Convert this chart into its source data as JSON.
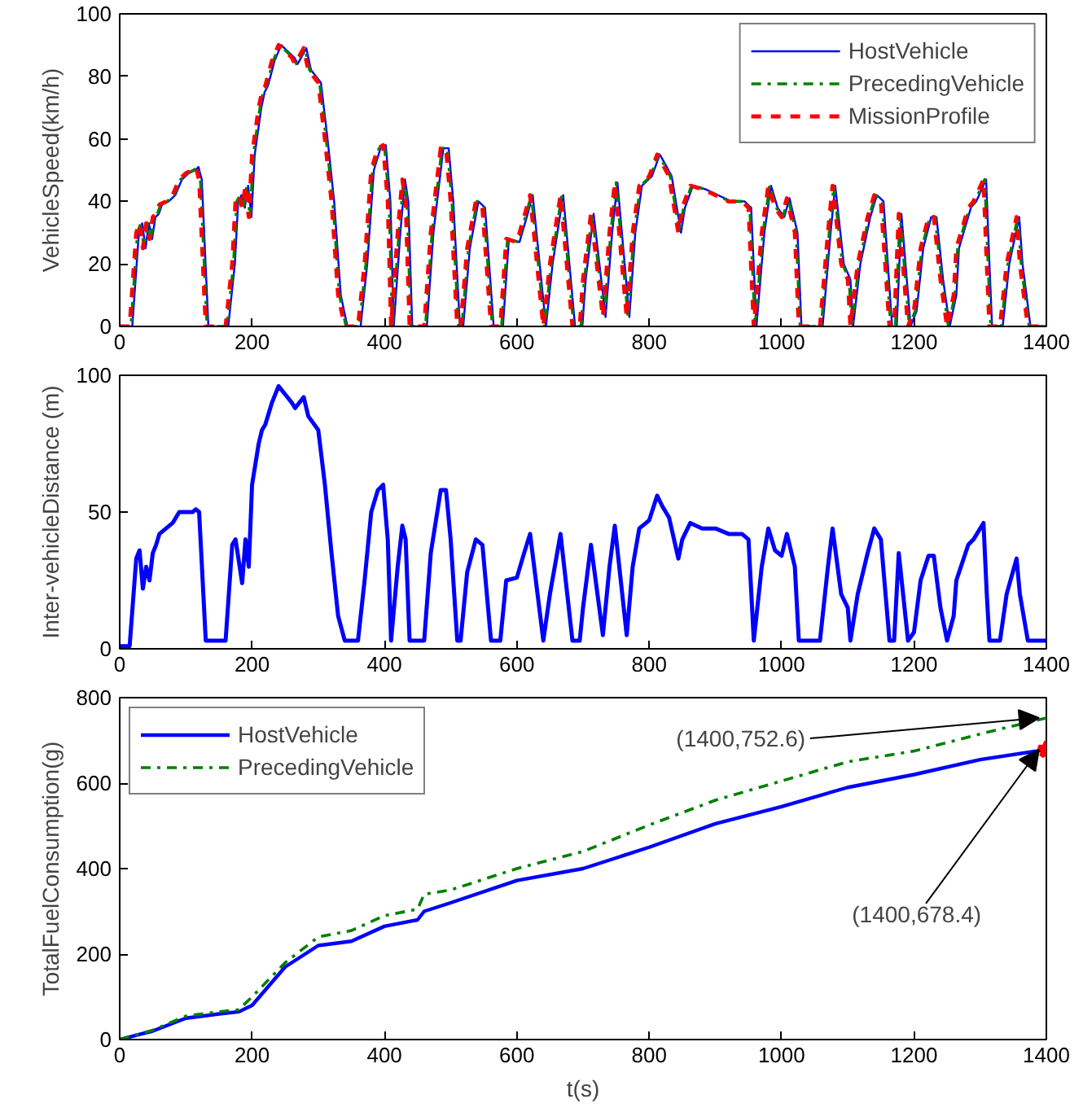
{
  "chart_data": [
    {
      "type": "line",
      "ylabel": "VehicleSpeed(km/h)",
      "xlim": [
        0,
        1400
      ],
      "ylim": [
        0,
        100
      ],
      "xticks": [
        0,
        200,
        400,
        600,
        800,
        1000,
        1200,
        1400
      ],
      "yticks": [
        0,
        20,
        40,
        60,
        80,
        100
      ],
      "grid": false,
      "legend": "top right",
      "x": [
        0,
        15,
        25,
        30,
        35,
        40,
        45,
        50,
        55,
        60,
        70,
        80,
        90,
        100,
        110,
        115,
        120,
        130,
        160,
        170,
        175,
        180,
        185,
        190,
        195,
        200,
        210,
        215,
        220,
        230,
        240,
        250,
        260,
        265,
        278,
        285,
        300,
        310,
        320,
        330,
        340,
        360,
        370,
        380,
        390,
        398,
        405,
        410,
        420,
        427,
        432,
        438,
        460,
        470,
        485,
        493,
        500,
        510,
        515,
        525,
        538,
        548,
        561,
        575,
        584,
        600,
        611,
        620,
        640,
        650,
        666,
        684,
        695,
        700,
        712,
        730,
        740,
        748,
        766,
        775,
        785,
        800,
        812,
        820,
        830,
        844,
        850,
        862,
        880,
        900,
        920,
        940,
        950,
        958,
        970,
        980,
        990,
        1000,
        1008,
        1020,
        1026,
        1058,
        1070,
        1077,
        1090,
        1100,
        1104,
        1115,
        1130,
        1140,
        1150,
        1163,
        1170,
        1177,
        1191,
        1200,
        1210,
        1222,
        1230,
        1240,
        1250,
        1260,
        1264,
        1282,
        1290,
        1305,
        1310,
        1314,
        1330,
        1340,
        1355,
        1360,
        1372,
        1400
      ],
      "series": [
        {
          "name": "HostVehicle",
          "color": "#0000ff",
          "line_style": "solid",
          "x": [
            0,
            19,
            29,
            34,
            39,
            44,
            49,
            54,
            59,
            64,
            74,
            84,
            94,
            104,
            114,
            119,
            124,
            134,
            164,
            174,
            179,
            184,
            189,
            194,
            199,
            204,
            214,
            219,
            224,
            234,
            244,
            254,
            264,
            269,
            282,
            289,
            304,
            314,
            324,
            334,
            344,
            364,
            374,
            384,
            394,
            402,
            409,
            414,
            424,
            431,
            436,
            442,
            464,
            474,
            489,
            497,
            504,
            514,
            519,
            529,
            542,
            552,
            565,
            579,
            588,
            604,
            615,
            624,
            644,
            654,
            670,
            688,
            699,
            704,
            716,
            734,
            744,
            752,
            770,
            779,
            789,
            804,
            816,
            824,
            834,
            848,
            854,
            866,
            884,
            904,
            924,
            944,
            954,
            962,
            974,
            984,
            994,
            1004,
            1012,
            1024,
            1030,
            1062,
            1074,
            1081,
            1094,
            1104,
            1108,
            1119,
            1134,
            1144,
            1154,
            1167,
            1174,
            1181,
            1195,
            1204,
            1214,
            1226,
            1234,
            1244,
            1254,
            1264,
            1268,
            1286,
            1294,
            1309,
            1314,
            1318,
            1334,
            1344,
            1359,
            1364,
            1376,
            1400
          ],
          "values": [
            0,
            0,
            30,
            33,
            25,
            33,
            28,
            35,
            36,
            39,
            40,
            42,
            47,
            49,
            50,
            51,
            47,
            0,
            0,
            20,
            40,
            42,
            38,
            45,
            35,
            55,
            70,
            75,
            77,
            85,
            90,
            88,
            86,
            84,
            89,
            82,
            78,
            60,
            40,
            10,
            0,
            0,
            20,
            50,
            57,
            58,
            40,
            0,
            30,
            47,
            40,
            0,
            0,
            30,
            57,
            57,
            40,
            0,
            0,
            25,
            40,
            38,
            0,
            0,
            28,
            27,
            35,
            42,
            0,
            20,
            42,
            0,
            0,
            15,
            36,
            3,
            30,
            46,
            3,
            30,
            45,
            48,
            55,
            52,
            48,
            30,
            38,
            45,
            44,
            42,
            40,
            40,
            38,
            0,
            30,
            45,
            38,
            35,
            41,
            30,
            0,
            0,
            30,
            45,
            20,
            15,
            0,
            20,
            35,
            42,
            40,
            0,
            0,
            36,
            0,
            5,
            25,
            35,
            35,
            15,
            0,
            10,
            25,
            38,
            40,
            47,
            20,
            0,
            0,
            20,
            35,
            20,
            0,
            0
          ]
        },
        {
          "name": "PrecedingVehicle",
          "color": "#008000",
          "line_style": "dashdot",
          "x": [
            0,
            17,
            27,
            32,
            37,
            42,
            47,
            52,
            57,
            62,
            72,
            82,
            92,
            102,
            112,
            117,
            122,
            132,
            162,
            172,
            177,
            182,
            187,
            192,
            197,
            202,
            212,
            217,
            222,
            232,
            242,
            252,
            262,
            267,
            280,
            287,
            302,
            312,
            322,
            332,
            342,
            362,
            372,
            382,
            392,
            400,
            407,
            412,
            422,
            429,
            434,
            440,
            462,
            472,
            487,
            495,
            502,
            512,
            517,
            527,
            540,
            550,
            563,
            577,
            586,
            602,
            613,
            622,
            642,
            652,
            668,
            686,
            697,
            702,
            714,
            732,
            742,
            750,
            768,
            777,
            787,
            802,
            814,
            822,
            832,
            846,
            852,
            864,
            882,
            902,
            922,
            942,
            952,
            960,
            972,
            982,
            992,
            1002,
            1010,
            1022,
            1028,
            1060,
            1072,
            1079,
            1092,
            1102,
            1106,
            1117,
            1132,
            1142,
            1152,
            1165,
            1172,
            1179,
            1193,
            1202,
            1212,
            1224,
            1232,
            1242,
            1252,
            1262,
            1266,
            1284,
            1292,
            1307,
            1312,
            1316,
            1332,
            1342,
            1357,
            1362,
            1374,
            1400
          ],
          "values": [
            0,
            0,
            30,
            33,
            25,
            33,
            28,
            35,
            36,
            39,
            40,
            42,
            47,
            49,
            50,
            51,
            47,
            0,
            0,
            20,
            40,
            42,
            38,
            45,
            35,
            55,
            70,
            75,
            77,
            85,
            90,
            88,
            86,
            84,
            89,
            82,
            78,
            60,
            40,
            10,
            0,
            0,
            20,
            50,
            57,
            58,
            40,
            0,
            30,
            47,
            40,
            0,
            0,
            30,
            57,
            57,
            40,
            0,
            0,
            25,
            40,
            38,
            0,
            0,
            28,
            27,
            35,
            42,
            0,
            20,
            42,
            0,
            0,
            15,
            36,
            3,
            30,
            46,
            3,
            30,
            45,
            48,
            55,
            52,
            48,
            30,
            38,
            45,
            44,
            42,
            40,
            40,
            38,
            0,
            30,
            45,
            38,
            35,
            41,
            30,
            0,
            0,
            30,
            45,
            20,
            15,
            0,
            20,
            35,
            42,
            40,
            0,
            0,
            36,
            0,
            5,
            25,
            35,
            35,
            15,
            0,
            10,
            25,
            38,
            40,
            47,
            20,
            0,
            0,
            20,
            35,
            20,
            0,
            0
          ]
        },
        {
          "name": "MissionProfile",
          "color": "#ff0000",
          "line_style": "dashed",
          "values": [
            0,
            0,
            30,
            33,
            25,
            33,
            28,
            35,
            36,
            39,
            40,
            42,
            47,
            49,
            50,
            51,
            47,
            0,
            0,
            20,
            40,
            42,
            38,
            45,
            35,
            55,
            70,
            75,
            77,
            85,
            90,
            88,
            86,
            84,
            89,
            82,
            78,
            60,
            40,
            10,
            0,
            0,
            20,
            50,
            57,
            58,
            40,
            0,
            30,
            47,
            40,
            0,
            0,
            30,
            57,
            57,
            40,
            0,
            0,
            25,
            40,
            38,
            0,
            0,
            28,
            27,
            35,
            42,
            0,
            20,
            42,
            0,
            0,
            15,
            36,
            3,
            30,
            46,
            3,
            30,
            45,
            48,
            55,
            52,
            48,
            30,
            38,
            45,
            44,
            42,
            40,
            40,
            38,
            0,
            30,
            45,
            38,
            35,
            41,
            30,
            0,
            0,
            30,
            45,
            20,
            15,
            0,
            20,
            35,
            42,
            40,
            0,
            0,
            36,
            0,
            5,
            25,
            35,
            35,
            15,
            0,
            10,
            25,
            38,
            40,
            47,
            20,
            0,
            0,
            20,
            35,
            20,
            0,
            0
          ]
        }
      ]
    },
    {
      "type": "line",
      "ylabel": "Inter-vehicleDistance (m)",
      "xlim": [
        0,
        1400
      ],
      "ylim": [
        0,
        100
      ],
      "xticks": [
        0,
        200,
        400,
        600,
        800,
        1000,
        1200,
        1400
      ],
      "yticks": [
        0,
        50,
        100
      ],
      "grid": false,
      "x": [
        0,
        15,
        25,
        30,
        35,
        40,
        45,
        50,
        55,
        60,
        70,
        80,
        90,
        100,
        110,
        115,
        120,
        130,
        160,
        170,
        175,
        180,
        185,
        190,
        195,
        200,
        210,
        215,
        220,
        230,
        240,
        250,
        260,
        265,
        278,
        285,
        300,
        310,
        320,
        330,
        340,
        360,
        370,
        380,
        390,
        398,
        405,
        410,
        420,
        427,
        432,
        438,
        460,
        470,
        485,
        493,
        500,
        510,
        515,
        525,
        538,
        548,
        561,
        575,
        584,
        600,
        611,
        620,
        640,
        650,
        666,
        684,
        695,
        700,
        712,
        730,
        740,
        748,
        766,
        775,
        785,
        800,
        812,
        820,
        830,
        844,
        850,
        862,
        880,
        900,
        920,
        940,
        950,
        958,
        970,
        980,
        990,
        1000,
        1008,
        1020,
        1026,
        1058,
        1070,
        1077,
        1090,
        1100,
        1104,
        1115,
        1130,
        1140,
        1150,
        1163,
        1170,
        1177,
        1191,
        1200,
        1210,
        1222,
        1230,
        1240,
        1250,
        1260,
        1264,
        1282,
        1290,
        1305,
        1310,
        1314,
        1330,
        1340,
        1355,
        1360,
        1372,
        1400
      ],
      "series": [
        {
          "color": "#0000ff",
          "line_style": "solid",
          "values": [
            1,
            1,
            33,
            36,
            22,
            30,
            25,
            35,
            38,
            42,
            44,
            46,
            50,
            50,
            50,
            51,
            50,
            3,
            3,
            38,
            40,
            32,
            24,
            40,
            30,
            60,
            75,
            80,
            82,
            90,
            96,
            93,
            90,
            88,
            92,
            85,
            80,
            60,
            35,
            12,
            3,
            3,
            25,
            50,
            58,
            60,
            40,
            3,
            30,
            45,
            40,
            3,
            3,
            35,
            58,
            58,
            40,
            3,
            3,
            28,
            40,
            38,
            3,
            3,
            25,
            26,
            35,
            42,
            3,
            20,
            42,
            3,
            3,
            15,
            38,
            5,
            30,
            45,
            5,
            30,
            44,
            47,
            56,
            52,
            48,
            33,
            40,
            46,
            44,
            44,
            42,
            42,
            40,
            3,
            30,
            44,
            36,
            34,
            42,
            30,
            3,
            3,
            30,
            44,
            20,
            15,
            3,
            20,
            35,
            44,
            40,
            3,
            3,
            35,
            3,
            6,
            25,
            34,
            34,
            15,
            3,
            12,
            25,
            38,
            40,
            46,
            20,
            3,
            3,
            20,
            33,
            20,
            3,
            3
          ]
        }
      ]
    },
    {
      "type": "line",
      "xlabel": "t(s)",
      "ylabel": "TotalFuelConsumption(g)",
      "xlim": [
        0,
        1400
      ],
      "ylim": [
        0,
        800
      ],
      "xticks": [
        0,
        200,
        400,
        600,
        800,
        1000,
        1200,
        1400
      ],
      "yticks": [
        0,
        200,
        400,
        600,
        800
      ],
      "grid": false,
      "legend": "top left",
      "x": [
        0,
        50,
        100,
        150,
        180,
        200,
        250,
        300,
        350,
        400,
        450,
        460,
        500,
        600,
        700,
        800,
        900,
        1000,
        1100,
        1200,
        1300,
        1400
      ],
      "series": [
        {
          "name": "HostVehicle",
          "color": "#0000ff",
          "line_style": "solid",
          "values": [
            0,
            20,
            50,
            60,
            65,
            80,
            170,
            220,
            230,
            265,
            280,
            300,
            320,
            372,
            400,
            450,
            505,
            545,
            590,
            620,
            655,
            678.4
          ]
        },
        {
          "name": "PrecedingVehicle",
          "color": "#008000",
          "line_style": "dashdot",
          "values": [
            0,
            22,
            55,
            65,
            70,
            100,
            180,
            240,
            255,
            290,
            305,
            340,
            350,
            400,
            440,
            502,
            560,
            605,
            650,
            675,
            715,
            752.6
          ]
        },
        {
          "type": "scatter",
          "x": [
            1400
          ],
          "values": [
            678.4
          ],
          "color": "#ff0000",
          "marker": "star"
        }
      ],
      "annotations": [
        {
          "text": "(1400,752.6)",
          "x": 1400,
          "y": 752.6
        },
        {
          "text": "(1400,678.4)",
          "x": 1400,
          "y": 678.4
        }
      ]
    }
  ]
}
